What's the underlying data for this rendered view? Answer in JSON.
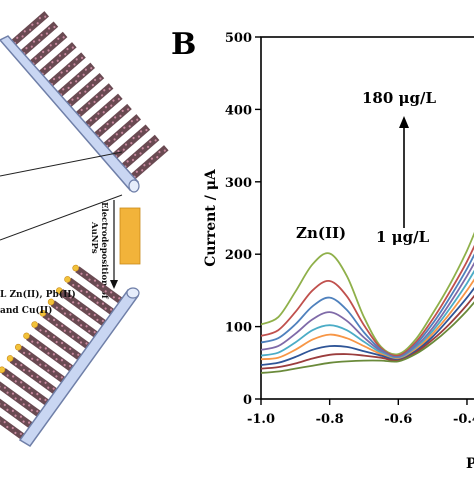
{
  "panel_letter": "B",
  "schematic": {
    "step_label_line1": "Electrodeposition of",
    "step_label_line2": "AuNPs",
    "analytes_line1": "L Zn(II), Pb(II)",
    "analytes_line2": "and Cu(II)",
    "colors": {
      "electrode": "#c9d6f2",
      "electrode_edge": "#6f7fa8",
      "wire": "#6a4a52",
      "wire_dot": "#c98aa0",
      "gold": "#f2b33a",
      "dot": "#f2c23a"
    }
  },
  "chart_data": {
    "type": "line",
    "ylabel": "Current / μA",
    "xlabel": "P",
    "x_ticks": [
      "-1.0",
      "-0.8",
      "-0.6",
      "-0.4",
      "-0"
    ],
    "y_ticks": [
      "0",
      "100",
      "200",
      "300",
      "400",
      "500"
    ],
    "xlim": [
      -1.0,
      -0.33
    ],
    "ylim": [
      0,
      500
    ],
    "grid": false,
    "annotations": {
      "peak_label": "Zn(II)",
      "high_conc": "180 μg/L",
      "low_conc": "1 μg/L"
    },
    "x": [
      -1.0,
      -0.95,
      -0.9,
      -0.85,
      -0.8,
      -0.75,
      -0.7,
      -0.65,
      -0.6,
      -0.55,
      -0.5,
      -0.45,
      -0.4,
      -0.35
    ],
    "series": [
      {
        "color": "#8fb04a",
        "values": [
          103,
          113,
          148,
          186,
          201,
          170,
          113,
          72,
          62,
          82,
          118,
          158,
          205,
          262
        ]
      },
      {
        "color": "#c0504d",
        "values": [
          87,
          95,
          120,
          150,
          163,
          142,
          102,
          70,
          60,
          78,
          110,
          148,
          190,
          240
        ]
      },
      {
        "color": "#4f81bd",
        "values": [
          78,
          84,
          103,
          128,
          140,
          123,
          92,
          68,
          58,
          75,
          104,
          140,
          180,
          226
        ]
      },
      {
        "color": "#7f6aa8",
        "values": [
          68,
          73,
          90,
          110,
          120,
          108,
          85,
          66,
          57,
          72,
          98,
          132,
          170,
          212
        ]
      },
      {
        "color": "#4bacc6",
        "values": [
          60,
          64,
          78,
          95,
          102,
          95,
          79,
          64,
          56,
          70,
          94,
          125,
          160,
          200
        ]
      },
      {
        "color": "#f79646",
        "values": [
          55,
          57,
          68,
          82,
          89,
          84,
          73,
          62,
          55,
          68,
          90,
          118,
          150,
          186
        ]
      },
      {
        "color": "#2f5597",
        "values": [
          47,
          50,
          58,
          68,
          73,
          72,
          66,
          60,
          54,
          66,
          86,
          112,
          140,
          172
        ]
      },
      {
        "color": "#9b3d3d",
        "values": [
          42,
          44,
          49,
          56,
          61,
          62,
          60,
          57,
          53,
          64,
          82,
          104,
          130,
          160
        ]
      },
      {
        "color": "#6a8a3a",
        "values": [
          36,
          38,
          42,
          46,
          50,
          52,
          53,
          53,
          52,
          62,
          78,
          98,
          122,
          150
        ]
      }
    ]
  }
}
